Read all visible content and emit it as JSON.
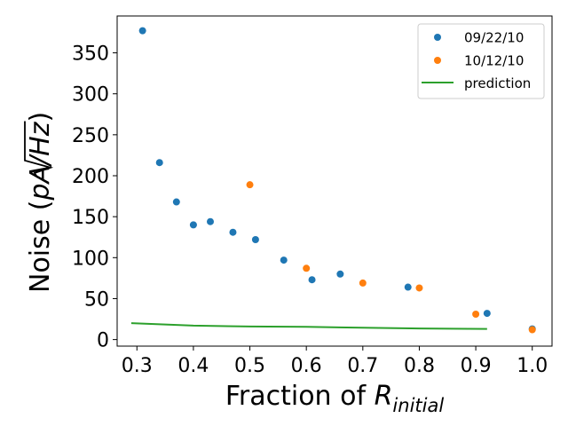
{
  "chart_data": {
    "type": "scatter",
    "xlabel": {
      "main": "Fraction of ",
      "symbol": "R",
      "subscript": "initial"
    },
    "ylabel": {
      "main": "Noise (",
      "symbol": "pA/",
      "radicand": "Hz",
      "close": ")"
    },
    "xlim": [
      0.265,
      1.035
    ],
    "ylim": [
      -8,
      395
    ],
    "xticks": [
      0.3,
      0.4,
      0.5,
      0.6,
      0.7,
      0.8,
      0.9,
      1.0
    ],
    "xtick_labels": [
      "0.3",
      "0.4",
      "0.5",
      "0.6",
      "0.7",
      "0.8",
      "0.9",
      "1.0"
    ],
    "yticks": [
      0,
      50,
      100,
      150,
      200,
      250,
      300,
      350
    ],
    "ytick_labels": [
      "0",
      "50",
      "100",
      "150",
      "200",
      "250",
      "300",
      "350"
    ],
    "legend_position": "top-right",
    "series": [
      {
        "name": "09/22/10",
        "kind": "scatter",
        "color": "#1f77b4",
        "x": [
          0.31,
          0.34,
          0.37,
          0.4,
          0.43,
          0.47,
          0.51,
          0.56,
          0.61,
          0.66,
          0.78,
          0.92,
          1.0
        ],
        "y": [
          377,
          216,
          168,
          140,
          144,
          131,
          122,
          97,
          73,
          80,
          64,
          32,
          13
        ]
      },
      {
        "name": "10/12/10",
        "kind": "scatter",
        "color": "#ff7f0e",
        "x": [
          0.5,
          0.6,
          0.7,
          0.8,
          0.9,
          1.0
        ],
        "y": [
          189,
          87,
          69,
          63,
          31,
          12
        ]
      },
      {
        "name": "prediction",
        "kind": "line",
        "color": "#2ca02c",
        "x": [
          0.29,
          0.4,
          0.5,
          0.6,
          0.7,
          0.8,
          0.92
        ],
        "y": [
          20,
          17,
          16,
          15.5,
          14.5,
          13.5,
          13
        ]
      }
    ]
  }
}
